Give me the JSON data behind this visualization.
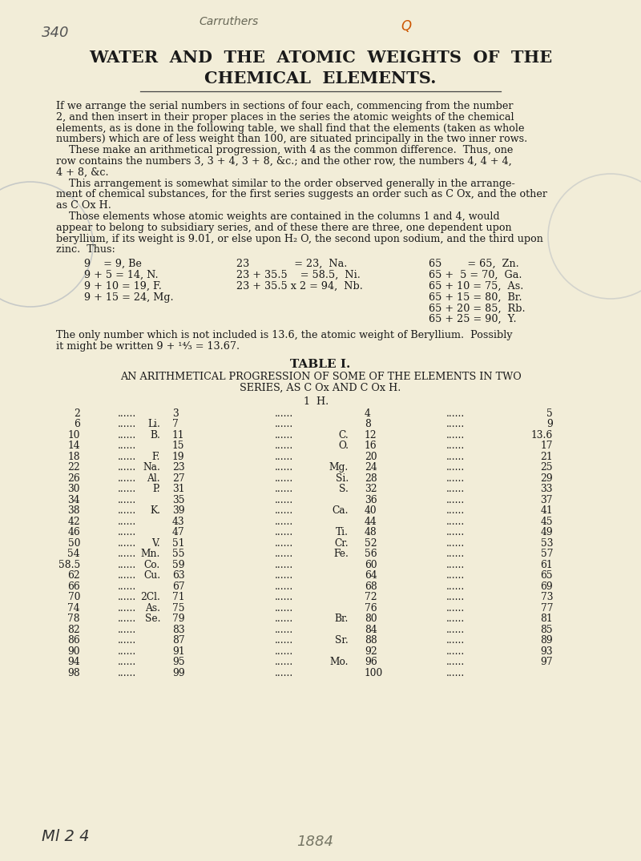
{
  "bg_color": "#f2edd8",
  "title_line1": "WATER  AND  THE  ATOMIC  WEIGHTS  OF  THE",
  "title_line2": "CHEMICAL  ELEMENTS.",
  "handwriting_340": "340",
  "handwriting_carruthers": "Carruthers",
  "handwriting_q1": "Q",
  "body_lines": [
    "If we arrange the serial numbers in sections of four each, commencing from the number",
    "2, and then insert in their proper places in the series the atomic weights of the chemical",
    "elements, as is done in the following table, we shall find that the elements (taken as whole",
    "numbers) which are of less weight than 100, are situated principally in the two inner rows.",
    "    These make an arithmetical progression, with 4 as the common difference.  Thus, one",
    "row contains the numbers 3, 3 + 4, 3 + 8, &c.; and the other row, the numbers 4, 4 + 4,",
    "4 + 8, &c.",
    "    This arrangement is somewhat similar to the order observed generally in the arrange-",
    "ment of chemical substances, for the first series suggests an order such as C Ox, and the other",
    "as C Ox H.",
    "    Those elements whose atomic weights are contained in the columns 1 and 4, would",
    "appear to belong to subsidiary series, and of these there are three, one dependent upon",
    "beryllium, if its weight is 9.01, or else upon H₂ O, the second upon sodium, and the third upon",
    "zinc.  Thus:"
  ],
  "eq_left": [
    "9    = 9, Be",
    "9 + 5 = 14, N.",
    "9 + 10 = 19, F.",
    "9 + 15 = 24, Mg."
  ],
  "eq_mid": [
    "23              = 23,  Na.",
    "23 + 35.5    = 58.5,  Ni.",
    "23 + 35.5 x 2 = 94,  Nb."
  ],
  "eq_right": [
    "65        = 65,  Zn.",
    "65 +  5 = 70,  Ga.",
    "65 + 10 = 75,  As.",
    "65 + 15 = 80,  Br.",
    "65 + 20 = 85,  Rb.",
    "65 + 25 = 90,  Y."
  ],
  "be_note1": "The only number which is not included is 13.6, the atomic weight of Beryllium.  Possibly",
  "be_note2": "it might be written 9 + ¹⁴⁄₃ = 13.67.",
  "table_title": "TABLE I.",
  "table_sub1": "AN ARITHMETICAL PROGRESSION OF SOME OF THE ELEMENTS IN TWO",
  "table_sub2": "SERIES, AS C Ox AND C Ox H.",
  "table_header": "1  H.",
  "table_rows": [
    [
      "2",
      "",
      "3",
      "",
      "4",
      "",
      "5"
    ],
    [
      "6",
      "Li.",
      "7",
      "",
      "8",
      "",
      "9"
    ],
    [
      "10",
      "B.",
      "11",
      "",
      "C.  12",
      "",
      "13.6"
    ],
    [
      "14",
      "",
      "15",
      "",
      "O.  16",
      "",
      "17"
    ],
    [
      "18",
      "F.",
      "19",
      "",
      "20",
      "",
      "21"
    ],
    [
      "22",
      "Na.",
      "23",
      "",
      "Mg. 24",
      "",
      "25"
    ],
    [
      "26",
      "Al.",
      "27",
      "",
      "Si. 28",
      "",
      "29"
    ],
    [
      "30",
      "P.",
      "31",
      "",
      "S.  32",
      "",
      "33"
    ],
    [
      "34",
      "",
      "35",
      "",
      "36",
      "",
      "37"
    ],
    [
      "38",
      "K.",
      "39",
      "",
      "Ca. 40",
      "",
      "41"
    ],
    [
      "42",
      "",
      "43",
      "",
      "44",
      "",
      "45"
    ],
    [
      "46",
      "",
      "47",
      "",
      "Ti. 48",
      "",
      "49"
    ],
    [
      "50",
      "V.",
      "51",
      "",
      "Cr. 52",
      "",
      "53"
    ],
    [
      "54",
      "Mn.",
      "55",
      "",
      "Fe. 56",
      "",
      "57"
    ],
    [
      "58.5",
      "Co.",
      "59",
      "",
      "60",
      "",
      "61"
    ],
    [
      "62",
      "Cu.",
      "63",
      "",
      "64",
      "",
      "65"
    ],
    [
      "66",
      "",
      "67",
      "",
      "68",
      "",
      "69"
    ],
    [
      "70",
      "2Cl.",
      "71",
      "",
      "72",
      "",
      "73"
    ],
    [
      "74",
      "As.",
      "75",
      "",
      "76",
      "",
      "77"
    ],
    [
      "78",
      "Se.",
      "79",
      "",
      "Br. 80",
      "",
      "81"
    ],
    [
      "82",
      "",
      "83",
      "",
      "84",
      "",
      "85"
    ],
    [
      "86",
      "",
      "87",
      "",
      "Sr. 88",
      "",
      "89"
    ],
    [
      "90",
      "",
      "91",
      "",
      "92",
      "",
      "93"
    ],
    [
      "94",
      "",
      "95",
      "",
      "Mo. 96",
      "",
      "97"
    ],
    [
      "98",
      "",
      "99",
      "",
      "100",
      "",
      ""
    ]
  ],
  "footer1": "Ml 2 4",
  "footer2": "1884"
}
